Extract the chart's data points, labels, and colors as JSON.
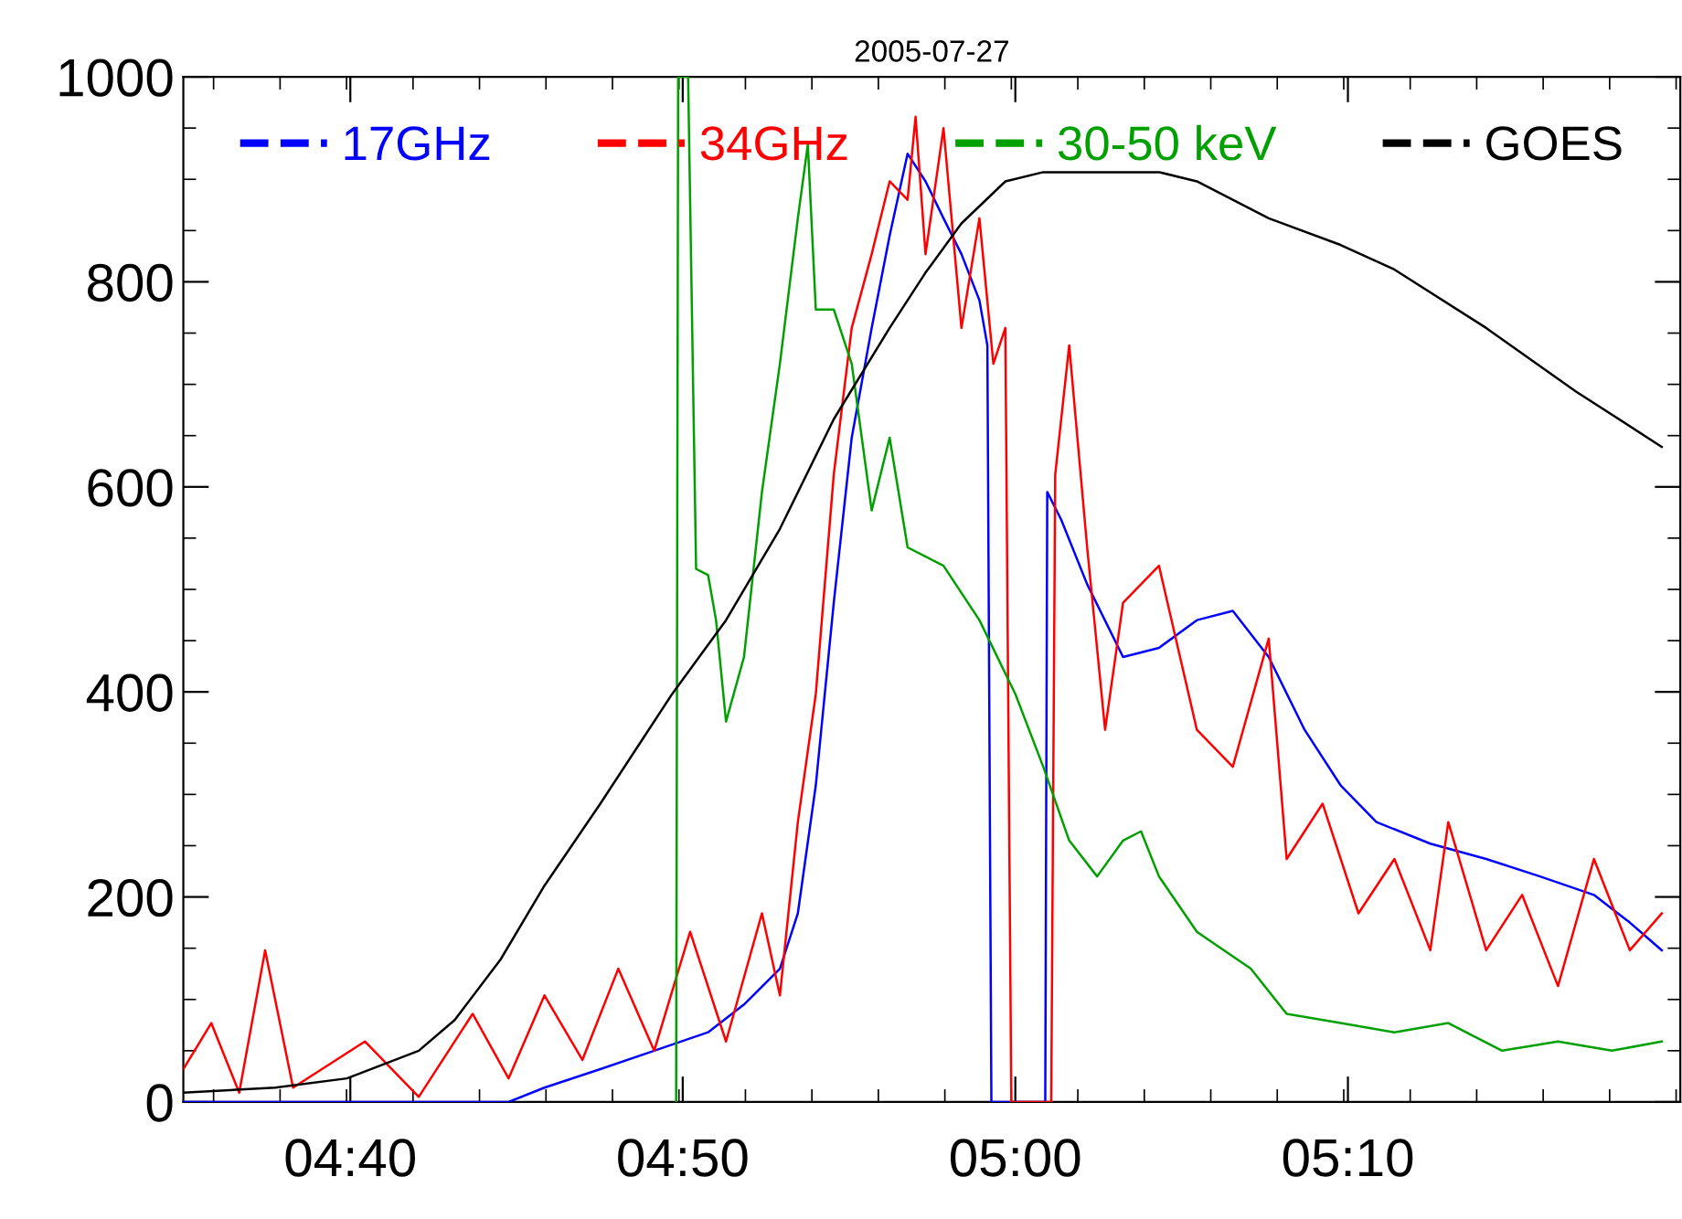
{
  "chart_data": {
    "type": "line",
    "title": "2005-07-27",
    "xlim": [
      4.583,
      5.3333
    ],
    "xticks": [
      {
        "value": 4.6667,
        "label": "04:40"
      },
      {
        "value": 4.8333,
        "label": "04:50"
      },
      {
        "value": 5.0,
        "label": "05:00"
      },
      {
        "value": 5.1667,
        "label": "05:10"
      }
    ],
    "ylim": [
      0,
      1000
    ],
    "yticks": [
      0,
      200,
      400,
      600,
      800,
      1000
    ],
    "grid": false,
    "legend": "top",
    "marker": "none",
    "line_style": "solid",
    "series": [
      {
        "name": "17GHz",
        "color": "#0000ff",
        "x": [
          4.583,
          4.746,
          4.764,
          4.792,
          4.819,
          4.846,
          4.864,
          4.882,
          4.891,
          4.9,
          4.909,
          4.918,
          4.928,
          4.937,
          4.946,
          4.955,
          4.964,
          4.973,
          4.982,
          4.986,
          4.988,
          4.992,
          5.015,
          5.016,
          5.023,
          5.036,
          5.054,
          5.072,
          5.091,
          5.109,
          5.127,
          5.145,
          5.163,
          5.181,
          5.208,
          5.236,
          5.263,
          5.29,
          5.308,
          5.324
        ],
        "values": [
          0,
          0,
          14,
          32,
          50,
          68,
          95,
          130,
          184,
          309,
          487,
          648,
          755,
          845,
          925,
          898,
          862,
          827,
          782,
          738,
          0,
          0,
          0,
          595,
          568,
          505,
          434,
          443,
          470,
          479,
          434,
          363,
          309,
          273,
          252,
          237,
          220,
          202,
          175,
          148
        ]
      },
      {
        "name": "34GHz",
        "color": "#ff0000",
        "x": [
          4.583,
          4.597,
          4.611,
          4.624,
          4.638,
          4.674,
          4.701,
          4.728,
          4.746,
          4.764,
          4.783,
          4.801,
          4.819,
          4.837,
          4.855,
          4.873,
          4.882,
          4.891,
          4.9,
          4.909,
          4.918,
          4.928,
          4.937,
          4.946,
          4.95,
          4.955,
          4.964,
          4.973,
          4.982,
          4.989,
          4.995,
          4.998,
          5.018,
          5.02,
          5.027,
          5.036,
          5.045,
          5.054,
          5.072,
          5.091,
          5.109,
          5.127,
          5.136,
          5.154,
          5.172,
          5.19,
          5.208,
          5.217,
          5.236,
          5.254,
          5.272,
          5.29,
          5.308,
          5.324
        ],
        "values": [
          32,
          77,
          9,
          148,
          14,
          59,
          5,
          86,
          23,
          104,
          41,
          130,
          50,
          166,
          59,
          184,
          104,
          273,
          398,
          612,
          755,
          827,
          898,
          880,
          961,
          827,
          950,
          755,
          862,
          720,
          755,
          0,
          0,
          612,
          738,
          541,
          363,
          487,
          523,
          363,
          327,
          452,
          237,
          291,
          184,
          237,
          148,
          273,
          148,
          202,
          113,
          237,
          148,
          184
        ]
      },
      {
        "name": "30-50 keV",
        "color": "#00a000",
        "x": [
          4.83,
          4.831,
          4.836,
          4.84,
          4.846,
          4.85,
          4.855,
          4.864,
          4.873,
          4.882,
          4.891,
          4.896,
          4.9,
          4.909,
          4.918,
          4.928,
          4.937,
          4.946,
          4.964,
          4.982,
          5.0,
          5.014,
          5.027,
          5.041,
          5.054,
          5.063,
          5.072,
          5.091,
          5.118,
          5.136,
          5.163,
          5.19,
          5.217,
          5.244,
          5.272,
          5.299,
          5.324
        ],
        "values": [
          0,
          1000,
          1000,
          520,
          514,
          470,
          371,
          434,
          595,
          720,
          862,
          934,
          773,
          773,
          720,
          577,
          648,
          541,
          523,
          470,
          398,
          327,
          255,
          220,
          255,
          264,
          220,
          166,
          130,
          86,
          77,
          68,
          77,
          50,
          59,
          50,
          59
        ]
      },
      {
        "name": "GOES",
        "color": "#000000",
        "x": [
          4.583,
          4.629,
          4.665,
          4.701,
          4.719,
          4.742,
          4.764,
          4.792,
          4.828,
          4.855,
          4.882,
          4.909,
          4.937,
          4.955,
          4.973,
          4.995,
          5.014,
          5.072,
          5.091,
          5.127,
          5.163,
          5.19,
          5.236,
          5.281,
          5.324
        ],
        "values": [
          9,
          14,
          23,
          50,
          80,
          139,
          211,
          291,
          398,
          470,
          559,
          666,
          755,
          809,
          857,
          898,
          907,
          907,
          898,
          862,
          836,
          812,
          755,
          693,
          639
        ]
      }
    ]
  }
}
